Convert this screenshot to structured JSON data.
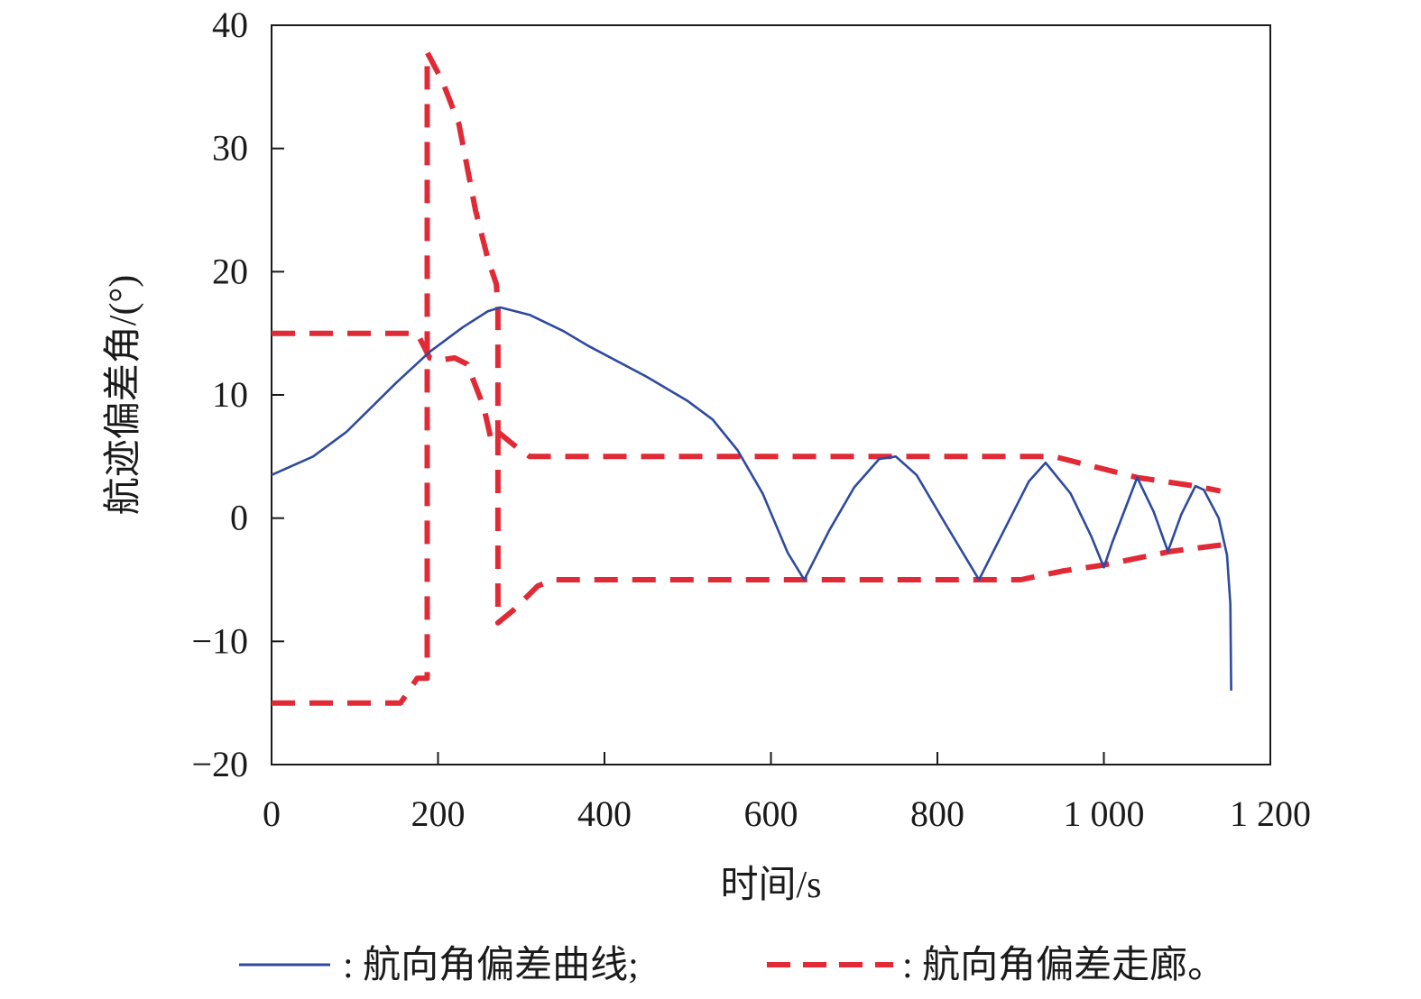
{
  "chart_data": {
    "type": "line",
    "title": "",
    "xlabel": "时间/s",
    "ylabel": "航迹偏差角/(°)",
    "xlim": [
      0,
      1200
    ],
    "ylim": [
      -20,
      40
    ],
    "x_ticks": [
      0,
      200,
      400,
      600,
      800,
      1000,
      1200
    ],
    "x_tick_labels": [
      "0",
      "200",
      "400",
      "600",
      "800",
      "1 000",
      "1 200"
    ],
    "y_ticks": [
      40,
      30,
      20,
      10,
      0,
      -10,
      -20
    ],
    "y_tick_labels": [
      "40",
      "30",
      "20",
      "10",
      "0",
      "−10",
      "−20"
    ],
    "grid": false,
    "legend_position": "bottom",
    "colors": {
      "curve": "#2e4aa0",
      "corridor": "#e02a36",
      "axis": "#1a1a1a"
    },
    "series": [
      {
        "name": "航向角偏差曲线",
        "style": "solid",
        "points": [
          [
            0,
            3.5
          ],
          [
            50,
            5
          ],
          [
            90,
            7
          ],
          [
            120,
            9
          ],
          [
            150,
            11
          ],
          [
            190,
            13.5
          ],
          [
            230,
            15.5
          ],
          [
            260,
            16.8
          ],
          [
            275,
            17.1
          ],
          [
            310,
            16.5
          ],
          [
            350,
            15.2
          ],
          [
            380,
            14
          ],
          [
            450,
            11.5
          ],
          [
            500,
            9.5
          ],
          [
            530,
            8
          ],
          [
            560,
            5.5
          ],
          [
            590,
            2
          ],
          [
            620,
            -2.8
          ],
          [
            640,
            -5
          ],
          [
            670,
            -1
          ],
          [
            700,
            2.5
          ],
          [
            730,
            4.8
          ],
          [
            750,
            5
          ],
          [
            775,
            3.5
          ],
          [
            810,
            -0.5
          ],
          [
            850,
            -5
          ],
          [
            880,
            -1
          ],
          [
            910,
            3
          ],
          [
            930,
            4.5
          ],
          [
            960,
            2
          ],
          [
            985,
            -1.5
          ],
          [
            1000,
            -4
          ],
          [
            1010,
            -2
          ],
          [
            1040,
            3.3
          ],
          [
            1060,
            0.5
          ],
          [
            1077,
            -2.7
          ],
          [
            1093,
            0.3
          ],
          [
            1110,
            2.6
          ],
          [
            1120,
            2.3
          ],
          [
            1138,
            0
          ],
          [
            1148,
            -3
          ],
          [
            1152,
            -7
          ],
          [
            1153,
            -14
          ]
        ]
      },
      {
        "name": "航向角偏差走廊",
        "style": "dashed",
        "segments": [
          [
            [
              0,
              15
            ],
            [
              175,
              15
            ],
            [
              190,
              13
            ],
            [
              200,
              12.8
            ],
            [
              220,
              13
            ],
            [
              235,
              12.5
            ],
            [
              255,
              9
            ],
            [
              265,
              6
            ]
          ],
          [
            [
              0,
              -15
            ],
            [
              155,
              -15
            ],
            [
              175,
              -13
            ],
            [
              187,
              -13
            ],
            [
              187,
              37.8
            ],
            [
              205,
              35.5
            ],
            [
              225,
              32
            ],
            [
              245,
              25
            ],
            [
              260,
              21
            ],
            [
              270,
              19
            ],
            [
              272,
              17
            ],
            [
              272,
              7
            ]
          ],
          [
            [
              272,
              7
            ],
            [
              290,
              6
            ],
            [
              310,
              5
            ],
            [
              340,
              5
            ],
            [
              940,
              5
            ],
            [
              1040,
              3.3
            ],
            [
              1110,
              2.6
            ],
            [
              1140,
              2.2
            ]
          ],
          [
            [
              272,
              7
            ],
            [
              272,
              -8.5
            ],
            [
              290,
              -7.5
            ],
            [
              320,
              -5.5
            ],
            [
              340,
              -5
            ],
            [
              880,
              -5
            ],
            [
              900,
              -5
            ],
            [
              950,
              -4.3
            ],
            [
              1000,
              -3.8
            ],
            [
              1080,
              -2.7
            ],
            [
              1150,
              -2.1
            ]
          ]
        ]
      }
    ],
    "legend": [
      {
        "style": "solid",
        "label": ": 航向角偏差曲线;"
      },
      {
        "style": "dashed",
        "label": ": 航向角偏差走廊。"
      }
    ]
  }
}
